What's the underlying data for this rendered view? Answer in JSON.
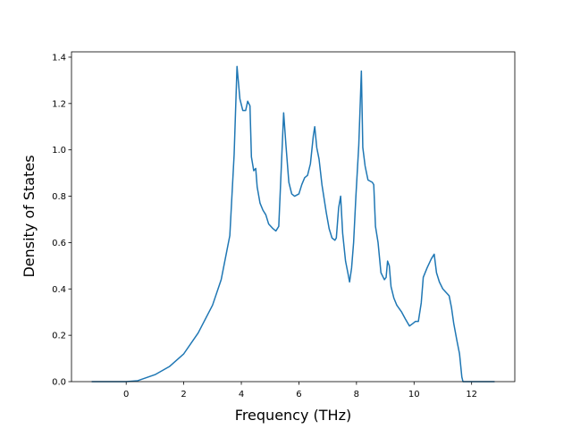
{
  "chart_data": {
    "type": "line",
    "x_label": "Frequency (THz)",
    "y_label": "Density of States",
    "x": [
      -1.2,
      0,
      0.4,
      1,
      1.5,
      2,
      2.5,
      3,
      3.3,
      3.6,
      3.75,
      3.85,
      3.95,
      4.05,
      4.15,
      4.22,
      4.3,
      4.35,
      4.43,
      4.5,
      4.55,
      4.65,
      4.75,
      4.85,
      4.95,
      5.1,
      5.2,
      5.3,
      5.47,
      5.55,
      5.65,
      5.75,
      5.85,
      6.0,
      6.1,
      6.2,
      6.3,
      6.4,
      6.5,
      6.55,
      6.62,
      6.7,
      6.8,
      6.95,
      7.05,
      7.15,
      7.25,
      7.3,
      7.38,
      7.45,
      7.52,
      7.62,
      7.7,
      7.76,
      7.83,
      7.9,
      7.98,
      8.08,
      8.17,
      8.22,
      8.3,
      8.4,
      8.55,
      8.6,
      8.66,
      8.75,
      8.85,
      8.97,
      9.03,
      9.08,
      9.14,
      9.2,
      9.3,
      9.4,
      9.57,
      9.7,
      9.84,
      9.95,
      10.05,
      10.15,
      10.25,
      10.32,
      10.45,
      10.6,
      10.7,
      10.78,
      10.88,
      11.0,
      11.15,
      11.22,
      11.3,
      11.38,
      11.5,
      11.58,
      11.66,
      11.7,
      12.8
    ],
    "series": [
      {
        "color": "#1f77b4",
        "values": [
          0,
          0,
          0.004,
          0.03,
          0.065,
          0.12,
          0.21,
          0.33,
          0.44,
          0.63,
          0.98,
          1.36,
          1.22,
          1.17,
          1.17,
          1.21,
          1.19,
          0.97,
          0.91,
          0.92,
          0.84,
          0.77,
          0.74,
          0.72,
          0.68,
          0.66,
          0.65,
          0.67,
          1.16,
          1.02,
          0.86,
          0.81,
          0.8,
          0.81,
          0.85,
          0.88,
          0.89,
          0.94,
          1.06,
          1.1,
          1.01,
          0.96,
          0.85,
          0.73,
          0.66,
          0.62,
          0.61,
          0.62,
          0.75,
          0.8,
          0.64,
          0.52,
          0.47,
          0.43,
          0.49,
          0.6,
          0.8,
          1.02,
          1.34,
          1.01,
          0.93,
          0.87,
          0.86,
          0.85,
          0.67,
          0.6,
          0.47,
          0.44,
          0.45,
          0.52,
          0.5,
          0.41,
          0.36,
          0.33,
          0.3,
          0.27,
          0.24,
          0.25,
          0.26,
          0.26,
          0.34,
          0.45,
          0.49,
          0.53,
          0.55,
          0.47,
          0.43,
          0.4,
          0.38,
          0.37,
          0.32,
          0.25,
          0.17,
          0.12,
          0.02,
          0,
          0
        ]
      }
    ],
    "xlim": [
      -1.9,
      13.5
    ],
    "ylim": [
      0,
      1.423
    ],
    "xticks": [
      0,
      2,
      4,
      6,
      8,
      10,
      12
    ],
    "yticks": [
      {
        "value": 0,
        "label": "0.0"
      },
      {
        "value": 0.2,
        "label": "0.2"
      },
      {
        "value": 0.4,
        "label": "0.4"
      },
      {
        "value": 0.6,
        "label": "0.6"
      },
      {
        "value": 0.8,
        "label": "0.8"
      },
      {
        "value": 1.0,
        "label": "1.0"
      },
      {
        "value": 1.2,
        "label": "1.2"
      },
      {
        "value": 1.4,
        "label": "1.4"
      }
    ],
    "grid": false
  }
}
